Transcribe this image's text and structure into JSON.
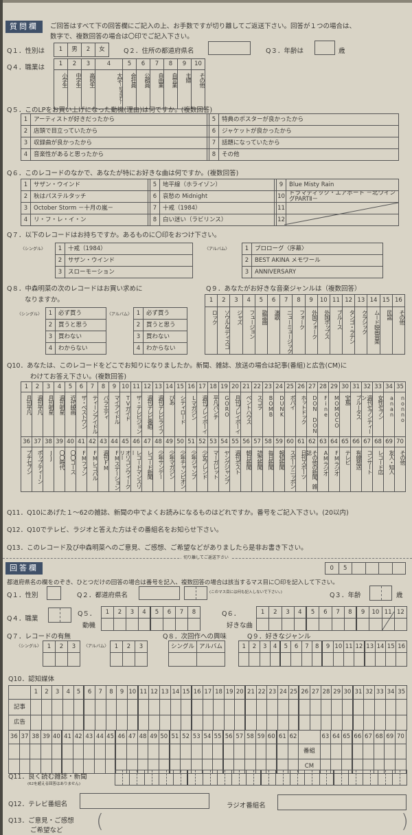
{
  "colors": {
    "paper": "#d9d4c6",
    "header_band": "#3f5068",
    "ink": "#3a3835"
  },
  "question_section": {
    "label": "質問欄",
    "intro_line1": "ご回答はすべて下の回答欄にご記入の上、お手数ですが切り離してご返送下さい。回答が１つの場合は、",
    "intro_line2": "数字で、複数回答の場合は〇印でご記入下さい。"
  },
  "q1": {
    "label": "Q１．性別は",
    "options": [
      "1",
      "男",
      "2",
      "女"
    ]
  },
  "q2": {
    "label": "Q２．住所の都道府県名"
  },
  "q3": {
    "label": "Q３．年齢は",
    "unit": "歳"
  },
  "q4": {
    "label": "Q４．職業は",
    "options": [
      {
        "num": "1",
        "label": "小学生"
      },
      {
        "num": "2",
        "label": "中学生"
      },
      {
        "num": "3",
        "label": "高校生"
      },
      {
        "num": "4",
        "label": "大学",
        "note": "(短大含む)"
      },
      {
        "num": "5",
        "label": "会社員"
      },
      {
        "num": "6",
        "label": "公務員"
      },
      {
        "num": "7",
        "label": "自由業"
      },
      {
        "num": "8",
        "label": "自営業"
      },
      {
        "num": "9",
        "label": "主婦"
      },
      {
        "num": "10",
        "label": "その他"
      }
    ]
  },
  "q5": {
    "label": "Q５．このLPをお買い上げになった動機(理由)は何ですか。(複数回答)",
    "options": [
      {
        "num": "1",
        "label": "アーティストが好きだったから"
      },
      {
        "num": "2",
        "label": "店頭で目立っていたから"
      },
      {
        "num": "3",
        "label": "収録曲が良かったから"
      },
      {
        "num": "4",
        "label": "音楽性があると思ったから"
      },
      {
        "num": "5",
        "label": "特典のポスターが良かったから"
      },
      {
        "num": "6",
        "label": "ジャケットが良かったから"
      },
      {
        "num": "7",
        "label": "話題になっていたから"
      },
      {
        "num": "8",
        "label": "その他"
      }
    ]
  },
  "q6": {
    "label": "Q６．このレコードのなかで、あなたが特にお好きな曲は何ですか。(複数回答)",
    "options": [
      {
        "num": "1",
        "label": "サザン・ウインド"
      },
      {
        "num": "2",
        "label": "秋はパステルタッチ"
      },
      {
        "num": "3",
        "label": "October Storm －十月の嵐－"
      },
      {
        "num": "4",
        "label": "リ・フ・レ・イ・ン"
      },
      {
        "num": "5",
        "label": "地平線（ホライゾン）"
      },
      {
        "num": "6",
        "label": "哀愁の Midnight"
      },
      {
        "num": "7",
        "label": "十戒（1984）"
      },
      {
        "num": "8",
        "label": "白い迷い（ラビリンス）"
      },
      {
        "num": "9",
        "label": "Blue Misty Rain"
      },
      {
        "num": "10",
        "label": "ドラマティック・エアポート －北ウイングPARTⅡ－"
      },
      {
        "num": "11",
        "label": ""
      },
      {
        "num": "12",
        "label": ""
      }
    ]
  },
  "q7": {
    "label": "Q７．以下のレコードはお持ちですか。あるものに〇印をおつけ下さい。",
    "single_label": "〈シングル〉",
    "album_label": "〈アルバム〉",
    "singles": [
      {
        "num": "1",
        "label": "十戒（1984）"
      },
      {
        "num": "2",
        "label": "サザン・ウインド"
      },
      {
        "num": "3",
        "label": "スローモーション"
      }
    ],
    "albums": [
      {
        "num": "1",
        "label": "プロローグ〈序幕〉"
      },
      {
        "num": "2",
        "label": "BEST AKINA メモワール"
      },
      {
        "num": "3",
        "label": "ANNIVERSARY"
      }
    ]
  },
  "q8": {
    "label_line1": "Q８．中森明菜の次のレコードはお買い求めに",
    "label_line2": "なりますか。",
    "single_label": "〈シングル〉",
    "album_label": "〈アルバム〉",
    "options": [
      {
        "num": "1",
        "label": "必ず買う"
      },
      {
        "num": "2",
        "label": "買うと思う"
      },
      {
        "num": "3",
        "label": "買わない"
      },
      {
        "num": "4",
        "label": "わからない"
      }
    ]
  },
  "q9": {
    "label": "Q９．あなたがお好きな音楽ジャンルは（複数回答）",
    "options": [
      {
        "num": "1",
        "label": "ロック"
      },
      {
        "num": "2",
        "label": "ソウル&ディスコ"
      },
      {
        "num": "3",
        "label": "ジャズ"
      },
      {
        "num": "4",
        "label": "フュージョン"
      },
      {
        "num": "5",
        "label": "歌謡曲"
      },
      {
        "num": "6",
        "label": "演歌"
      },
      {
        "num": "7",
        "label": "ニューミュージック"
      },
      {
        "num": "8",
        "label": "フォーク"
      },
      {
        "num": "9",
        "label": "外国フォーク"
      },
      {
        "num": "10",
        "label": "外国ポップス"
      },
      {
        "num": "11",
        "label": "ブルース"
      },
      {
        "num": "12",
        "label": "タンゴ・ラテン"
      },
      {
        "num": "13",
        "label": "クラシック"
      },
      {
        "num": "14",
        "label": "ムード映画音楽"
      },
      {
        "num": "15",
        "label": "民謡"
      },
      {
        "num": "16",
        "label": "その他"
      }
    ]
  },
  "q10": {
    "label_line1": "Q10．あなたは、このレコードをどこでお知りになりましたか。新聞、雑誌、放送の場合は記事(番組)と広告(CM)に",
    "label_line2": "わけてお答え下さい。(複数回答)",
    "options": [
      {
        "num": "1",
        "label": "月刊平凡"
      },
      {
        "num": "2",
        "label": "週刊平凡"
      },
      {
        "num": "3",
        "label": "月刊明星"
      },
      {
        "num": "4",
        "label": "週刊明星"
      },
      {
        "num": "5",
        "label": "近代映画"
      },
      {
        "num": "6",
        "label": "ザ・ベストワン"
      },
      {
        "num": "7",
        "label": "ティーンアイドル"
      },
      {
        "num": "8",
        "label": "バラエティ"
      },
      {
        "num": "9",
        "label": "マイアイドル"
      },
      {
        "num": "10",
        "label": "TVガイド"
      },
      {
        "num": "11",
        "label": "ザ・テレビジョン"
      },
      {
        "num": "12",
        "label": "週刊テレビ番組"
      },
      {
        "num": "13",
        "label": "週刊テレビライフ"
      },
      {
        "num": "14",
        "label": "ぴあ"
      },
      {
        "num": "15",
        "label": "シティロード"
      },
      {
        "num": "16",
        "label": "Lマガジン"
      },
      {
        "num": "17",
        "label": "週刊プレイボーイ"
      },
      {
        "num": "18",
        "label": "平凡パンチ"
      },
      {
        "num": "19",
        "label": "GORO"
      },
      {
        "num": "20",
        "label": "月刊プレイボーイ"
      },
      {
        "num": "21",
        "label": "ペントハウス"
      },
      {
        "num": "22",
        "label": "スコラ"
      },
      {
        "num": "23",
        "label": "BOMB"
      },
      {
        "num": "24",
        "label": "DUNK"
      },
      {
        "num": "25",
        "label": "ポパイ"
      },
      {
        "num": "26",
        "label": "ホットドック"
      },
      {
        "num": "27",
        "label": "DON DON"
      },
      {
        "num": "28",
        "label": "Fine"
      },
      {
        "num": "29",
        "label": "MOMOCO"
      },
      {
        "num": "30",
        "label": "宝島"
      },
      {
        "num": "31",
        "label": "ブルータス"
      },
      {
        "num": "32",
        "label": "週刊セブンティーン"
      },
      {
        "num": "33",
        "label": "女性セブン"
      },
      {
        "num": "34",
        "label": "anan"
      },
      {
        "num": "35",
        "label": "nonno"
      },
      {
        "num": "36",
        "label": "プチセブン"
      },
      {
        "num": "37",
        "label": "ポップティーン"
      },
      {
        "num": "38",
        "label": "JJ"
      },
      {
        "num": "39",
        "label": "〇〇時代"
      },
      {
        "num": "40",
        "label": "〇〇コース"
      },
      {
        "num": "41",
        "label": "FMファン"
      },
      {
        "num": "42",
        "label": "FMレコパル"
      },
      {
        "num": "43",
        "label": "週刊FM"
      },
      {
        "num": "44",
        "label": "FMステーション"
      },
      {
        "num": "45",
        "label": "オリコンウィークリー"
      },
      {
        "num": "46",
        "label": "レコードマンスリー"
      },
      {
        "num": "47",
        "label": "レコード新聞"
      },
      {
        "num": "48",
        "label": "少年サンデー"
      },
      {
        "num": "49",
        "label": "少年マガジン"
      },
      {
        "num": "50",
        "label": "少年チャンピオン"
      },
      {
        "num": "51",
        "label": "少年ジャンプ"
      },
      {
        "num": "52",
        "label": "少女フレンド"
      },
      {
        "num": "53",
        "label": "マーガレット"
      },
      {
        "num": "54",
        "label": "ヤングジャンプ"
      },
      {
        "num": "55",
        "label": "週刊ポスト"
      },
      {
        "num": "56",
        "label": "朝日新聞"
      },
      {
        "num": "57",
        "label": "読売新聞"
      },
      {
        "num": "58",
        "label": "毎日新聞"
      },
      {
        "num": "59",
        "label": "報知新聞"
      },
      {
        "num": "60",
        "label": "スポーツニッポン"
      },
      {
        "num": "61",
        "label": "日刊スポーツ"
      },
      {
        "num": "62",
        "label": "その他の新聞、雑誌"
      },
      {
        "num": "63",
        "label": "AMラジオ"
      },
      {
        "num": "64",
        "label": "FMラジオ"
      },
      {
        "num": "65",
        "label": "テレビ"
      },
      {
        "num": "66",
        "label": "有線放送"
      },
      {
        "num": "67",
        "label": "コンサート"
      },
      {
        "num": "68",
        "label": "レコード店"
      },
      {
        "num": "69",
        "label": "友人・知人"
      },
      {
        "num": "70",
        "label": "その他"
      }
    ]
  },
  "q11": {
    "label": "Q11．Q10にあげた１～62の雑誌、新聞の中でよくお読みになるものはどれですか。番号をご記入下さい。(20以内)"
  },
  "q12": {
    "label": "Q12．Q10でテレビ、ラジオと答えた方はその番組名をお知らせ下さい。"
  },
  "q13": {
    "label": "Q13．このレコード及び中森明菜へのご意見、ご感想、ご希望などがありましたら是非お書き下さい。"
  },
  "cut_line": "切り離してご返送下さい",
  "answer_section": {
    "label": "回答欄",
    "code": [
      "0",
      "5",
      "",
      "",
      "",
      ""
    ],
    "instruction": "都道府県名の欄をのぞき、ひとつだけの回答の場合は番号を記入、複数回答の場合は該当するマス目に〇印を記入して下さい。",
    "q1": "Q１．性別",
    "q2": "Q２．都道府県名",
    "q2_note": "(このマス目には何も記入しないで下さい。)",
    "q3": "Q３．年齢",
    "q3_unit": "歳",
    "q4": "Q４．職業",
    "q5": "Q５．",
    "q5_sub": "動機",
    "q6": "Q６．",
    "q6_sub": "好きな曲",
    "q7": "Q７．レコードの有無",
    "q7_single": "〈シングル〉",
    "q7_album": "〈アルバム〉",
    "q8": "Q８．次回作への興味",
    "q8_cols": [
      "シングル",
      "アルバム"
    ],
    "q9": "Q９．好きなジャンル",
    "q10": "Q10．認知媒体",
    "q10_rows": [
      "記事",
      "広告"
    ],
    "q10_rows2": [
      "番組",
      "CM"
    ],
    "q11": "Q11．良く読む雑誌・新聞",
    "q11_note": "(62を超える回答はありません)",
    "q12": "Q12．テレビ番組名",
    "q12_radio": "ラジオ番組名",
    "q13_line1": "Q13．ご意見・ご感想",
    "q13_line2": "ご希望など"
  }
}
